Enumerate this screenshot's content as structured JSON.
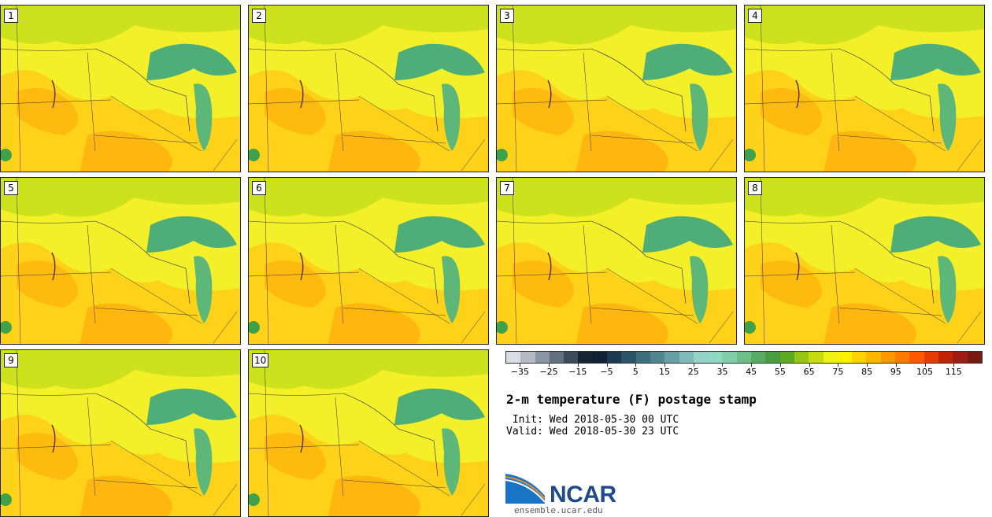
{
  "panels": [
    "1",
    "2",
    "3",
    "4",
    "5",
    "6",
    "7",
    "8",
    "9",
    "10"
  ],
  "colorbar": {
    "colors": [
      "#d7dde3",
      "#b3bac3",
      "#8a95a3",
      "#63707f",
      "#3c4a5b",
      "#172436",
      "#102236",
      "#1c3b52",
      "#2c5568",
      "#3c6e7c",
      "#4f8691",
      "#66a0a6",
      "#80b9b8",
      "#95d0c9",
      "#8fd9c4",
      "#7fcfa8",
      "#6bbf87",
      "#55ad63",
      "#469e3f",
      "#5caa1f",
      "#96c517",
      "#c6dc10",
      "#eef214",
      "#fff200",
      "#ffd200",
      "#ffb600",
      "#ff9800",
      "#ff7a00",
      "#ff5a00",
      "#e43c00",
      "#c02400",
      "#9e1c12",
      "#7a1812"
    ],
    "tick_labels": [
      "-35",
      "-25",
      "-15",
      "-5",
      "5",
      "15",
      "25",
      "35",
      "45",
      "55",
      "65",
      "75",
      "85",
      "95",
      "105",
      "115"
    ]
  },
  "title": "2-m temperature (F) postage stamp",
  "init": " Init: Wed 2018-05-30 00 UTC",
  "valid": "Valid: Wed 2018-05-30 23 UTC",
  "logo": {
    "text": "NCAR",
    "url": "ensemble.ucar.edu"
  }
}
